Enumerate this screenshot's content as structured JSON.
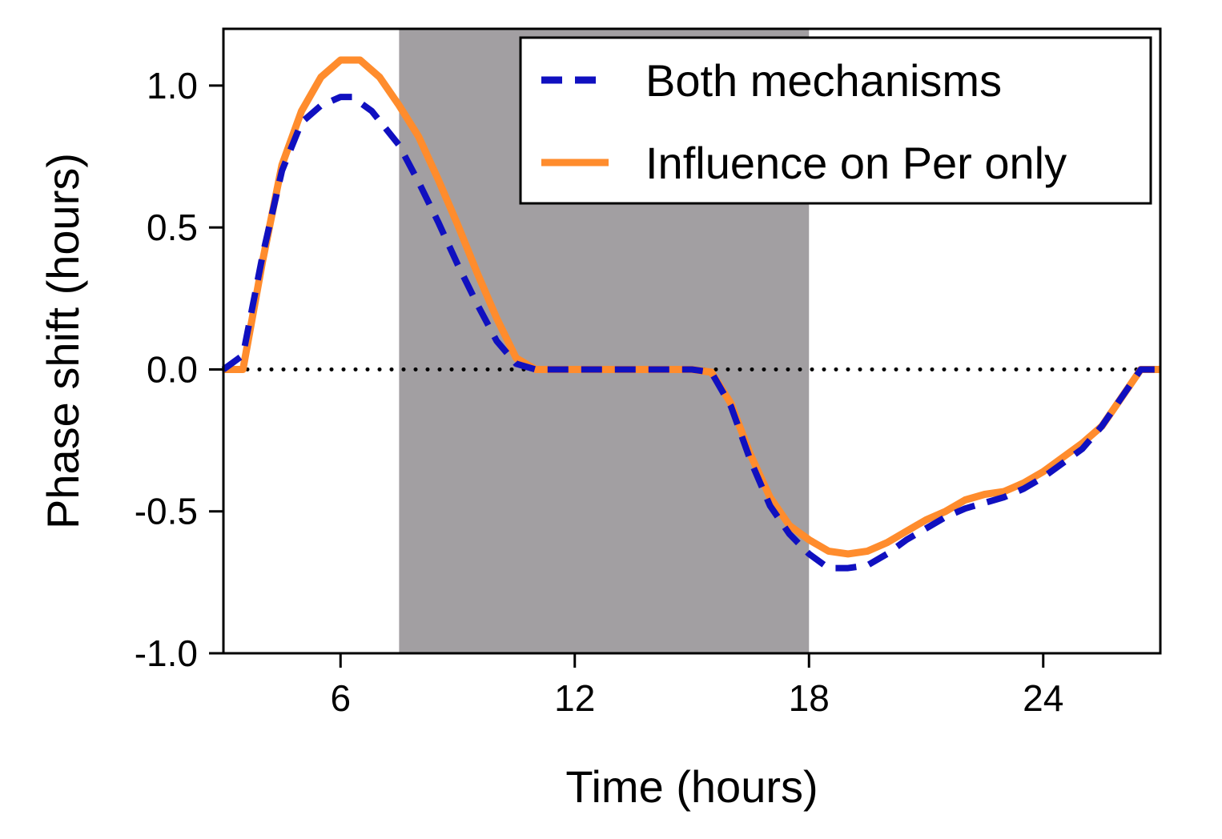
{
  "chart_data": {
    "type": "line",
    "title": "",
    "xlabel": "Time (hours)",
    "ylabel": "Phase shift (hours)",
    "xlim": [
      3,
      27
    ],
    "ylim": [
      -1.0,
      1.2
    ],
    "x_ticks": [
      6,
      12,
      18,
      24
    ],
    "x_tick_labels": [
      "6",
      "12",
      "18",
      "24"
    ],
    "y_ticks": [
      -1.0,
      -0.5,
      0.0,
      0.5,
      1.0
    ],
    "y_tick_labels": [
      "-1.0",
      "-0.5",
      "0.0",
      "0.5",
      "1.0"
    ],
    "grid": false,
    "legend_position": "top-right",
    "shaded_region": {
      "x_start": 7.5,
      "x_end": 18,
      "color": "#a29fa2"
    },
    "zero_line": {
      "y": 0,
      "style": "dotted",
      "color": "#000000"
    },
    "series": [
      {
        "name": "Both mechanisms",
        "style": "dashed",
        "color": "#1010c0",
        "x": [
          3.0,
          3.5,
          4.0,
          4.5,
          5.0,
          5.5,
          6.0,
          6.3,
          6.8,
          7.5,
          8.0,
          8.5,
          9.0,
          9.5,
          10.0,
          10.5,
          11.0,
          11.5,
          12.0,
          13.0,
          14.0,
          15.0,
          15.5,
          16.0,
          16.5,
          17.0,
          17.5,
          18.0,
          18.5,
          19.0,
          19.5,
          20.0,
          20.5,
          21.0,
          21.5,
          22.0,
          22.5,
          23.0,
          23.5,
          24.0,
          24.5,
          25.0,
          25.5,
          26.0,
          26.5,
          27.0
        ],
        "y": [
          0.0,
          0.05,
          0.4,
          0.7,
          0.87,
          0.93,
          0.96,
          0.96,
          0.91,
          0.79,
          0.66,
          0.52,
          0.37,
          0.23,
          0.1,
          0.02,
          0.0,
          0.0,
          0.0,
          0.0,
          0.0,
          0.0,
          -0.01,
          -0.13,
          -0.32,
          -0.48,
          -0.58,
          -0.65,
          -0.7,
          -0.7,
          -0.69,
          -0.65,
          -0.6,
          -0.56,
          -0.52,
          -0.49,
          -0.47,
          -0.45,
          -0.42,
          -0.38,
          -0.33,
          -0.28,
          -0.2,
          -0.1,
          0.0,
          0.0
        ]
      },
      {
        "name": "Influence on Per only",
        "style": "solid",
        "color": "#ff8c2d",
        "x": [
          3.0,
          3.5,
          4.0,
          4.5,
          5.0,
          5.5,
          6.0,
          6.5,
          7.0,
          7.5,
          8.0,
          8.5,
          9.0,
          9.5,
          10.0,
          10.5,
          11.0,
          11.5,
          12.0,
          13.0,
          14.0,
          15.0,
          15.5,
          16.0,
          16.5,
          17.0,
          17.5,
          18.0,
          18.5,
          19.0,
          19.5,
          20.0,
          20.5,
          21.0,
          21.5,
          22.0,
          22.5,
          23.0,
          23.5,
          24.0,
          24.5,
          25.0,
          25.5,
          26.0,
          26.5,
          27.0
        ],
        "y": [
          0.0,
          0.0,
          0.38,
          0.72,
          0.91,
          1.03,
          1.09,
          1.09,
          1.03,
          0.93,
          0.82,
          0.67,
          0.51,
          0.34,
          0.18,
          0.04,
          0.0,
          0.0,
          0.0,
          0.0,
          0.0,
          0.0,
          -0.01,
          -0.12,
          -0.3,
          -0.45,
          -0.55,
          -0.6,
          -0.64,
          -0.65,
          -0.64,
          -0.61,
          -0.57,
          -0.53,
          -0.5,
          -0.46,
          -0.44,
          -0.43,
          -0.4,
          -0.36,
          -0.31,
          -0.26,
          -0.2,
          -0.1,
          0.0,
          0.0
        ]
      }
    ]
  }
}
